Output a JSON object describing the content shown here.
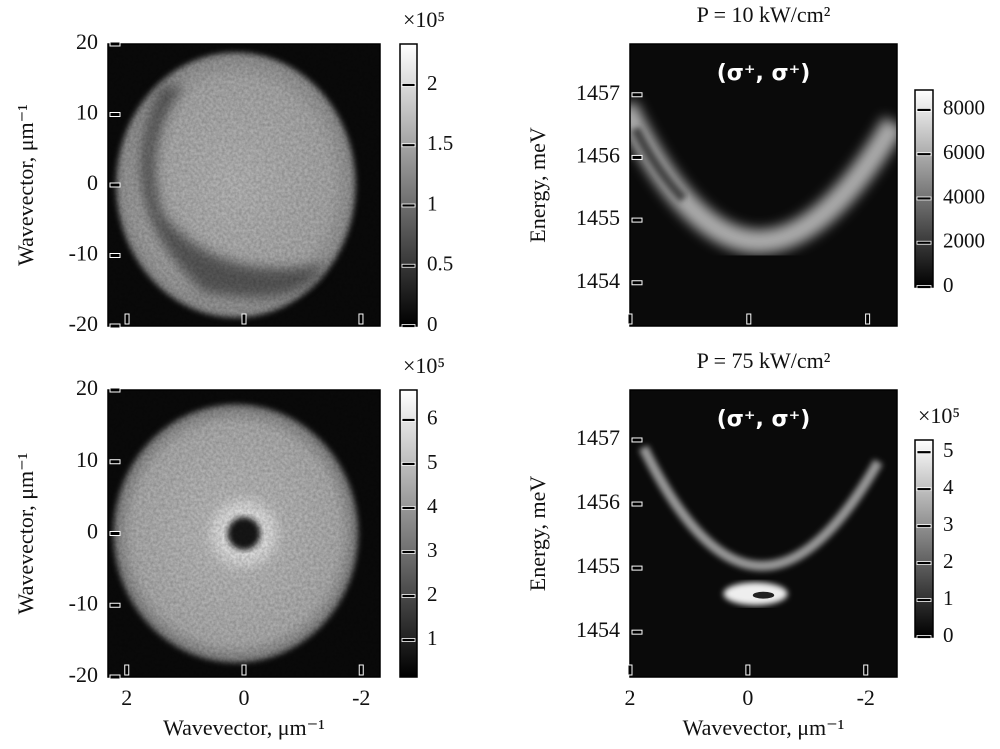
{
  "chart_data": [
    {
      "type": "heatmap",
      "ylabel": "Wavevector, μm⁻¹",
      "ylim": [
        -20,
        20
      ],
      "yticks": [
        -20,
        -10,
        0,
        10,
        20
      ],
      "xlim": [
        2.32,
        -2.32
      ],
      "colormap": "gray",
      "colorbar": {
        "label": "×10⁵",
        "lim": [
          0,
          2.34
        ],
        "ticks": [
          0,
          0.5,
          1,
          1.5,
          2
        ]
      }
    },
    {
      "type": "heatmap",
      "title": "P = 10 kW/cm²",
      "annotation": "(σ⁺, σ⁺)",
      "ylabel": "Energy, meV",
      "ylim": [
        1453.31,
        1457.81
      ],
      "yticks": [
        1454,
        1455,
        1456,
        1457
      ],
      "xlim": [
        2,
        -2.53
      ],
      "colormap": "gray",
      "colorbar": {
        "lim": [
          0,
          8900
        ],
        "ticks": [
          0,
          2000,
          4000,
          6000,
          8000
        ]
      }
    },
    {
      "type": "heatmap",
      "ylabel": "Wavevector, μm⁻¹",
      "xlabel": "Wavevector, μm⁻¹",
      "ylim": [
        -20,
        20
      ],
      "yticks": [
        -20,
        -10,
        0,
        10,
        20
      ],
      "xlim": [
        2.32,
        -2.32
      ],
      "xticks": [
        2,
        0,
        -2
      ],
      "colormap": "gray",
      "colorbar": {
        "label": "×10⁵",
        "lim": [
          0.16,
          6.68
        ],
        "ticks": [
          1,
          2,
          3,
          4,
          5,
          6
        ]
      }
    },
    {
      "type": "heatmap",
      "title": "P = 75 kW/cm²",
      "annotation": "(σ⁺, σ⁺)",
      "ylabel": "Energy, meV",
      "xlabel": "Wavevector, μm⁻¹",
      "ylim": [
        1453.3,
        1457.78
      ],
      "yticks": [
        1454,
        1455,
        1456,
        1457
      ],
      "xlim": [
        2,
        -2.53
      ],
      "xticks": [
        2,
        0,
        -2
      ],
      "colormap": "gray",
      "colorbar": {
        "label": "×10⁵",
        "lim": [
          0,
          5.33
        ],
        "ticks": [
          0,
          1,
          2,
          3,
          4,
          5
        ]
      }
    }
  ]
}
